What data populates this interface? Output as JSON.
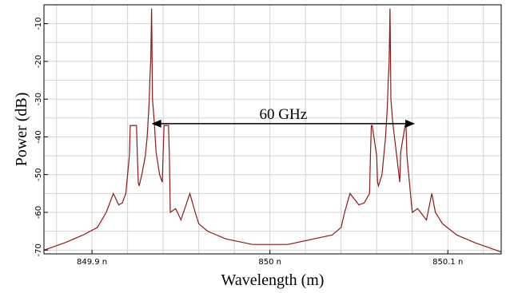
{
  "chart_data": {
    "type": "line",
    "title": "",
    "xlabel": "Wavelength (m)",
    "ylabel": "Power (dB)",
    "xlim": [
      849.873,
      850.13
    ],
    "ylim": [
      -71,
      -5
    ],
    "grid": true,
    "x_ticks": [
      849.9,
      850.0,
      850.1
    ],
    "x_tick_labels": [
      "849.9 n",
      "850 n",
      "850.1 n"
    ],
    "y_ticks": [
      -10,
      -20,
      -30,
      -40,
      -50,
      -60,
      -70
    ],
    "y_tick_labels": [
      "-10",
      "-20",
      "-30",
      "-40",
      "-50",
      "-60",
      "-70"
    ],
    "series": [
      {
        "color": "#8b1a1a",
        "x": [
          849.873,
          849.885,
          849.895,
          849.903,
          849.908,
          849.912,
          849.915,
          849.917,
          849.919,
          849.92,
          849.921,
          849.9215,
          849.925,
          849.9255,
          849.926,
          849.9265,
          849.928,
          849.93,
          849.931,
          849.932,
          849.9325,
          849.933,
          849.9335,
          849.934,
          849.935,
          849.936,
          849.938,
          849.9395,
          849.94,
          849.9405,
          849.943,
          849.9435,
          849.944,
          849.947,
          849.95,
          849.955,
          849.958,
          849.96,
          849.965,
          849.975,
          849.99,
          850.0,
          850.01,
          850.025,
          850.035,
          850.04,
          850.042,
          850.045,
          850.05,
          850.053,
          850.056,
          850.0565,
          850.057,
          850.0575,
          850.06,
          850.0605,
          850.061,
          850.063,
          850.064,
          850.065,
          850.066,
          850.0665,
          850.067,
          850.0675,
          850.068,
          850.069,
          850.071,
          850.0725,
          850.073,
          850.0735,
          850.076,
          850.0765,
          850.077,
          850.08,
          850.083,
          850.088,
          850.091,
          850.093,
          850.097,
          850.105,
          850.115,
          850.13
        ],
        "y": [
          -70,
          -68,
          -66,
          -64,
          -60,
          -55,
          -58,
          -57.5,
          -55,
          -50,
          -45,
          -37,
          -37,
          -45,
          -52,
          -53,
          -50,
          -45,
          -40,
          -32,
          -25,
          -20,
          -6,
          -30,
          -36,
          -44,
          -50,
          -52,
          -44,
          -37,
          -37,
          -45,
          -60,
          -59,
          -62,
          -55,
          -60,
          -63,
          -65,
          -67,
          -68.5,
          -68.5,
          -68.5,
          -67,
          -66,
          -64,
          -60,
          -55,
          -58,
          -57.5,
          -55,
          -45,
          -37,
          -37,
          -45,
          -52,
          -53,
          -50,
          -45,
          -40,
          -32,
          -25,
          -20,
          -6,
          -30,
          -36,
          -44,
          -50,
          -52,
          -44,
          -37,
          -37,
          -45,
          -60,
          -59,
          -62,
          -55,
          -60,
          -63,
          -66,
          -68,
          -70.5
        ]
      }
    ],
    "annotations": [
      {
        "text": "60 GHz",
        "arrow_from": [
          849.9335,
          -36.5
        ],
        "arrow_to": [
          850.0815,
          -36.5
        ]
      }
    ]
  }
}
